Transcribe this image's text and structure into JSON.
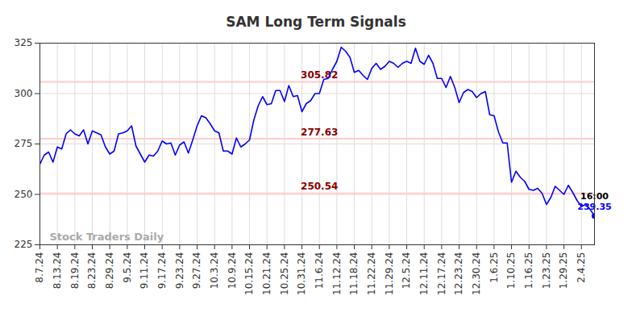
{
  "chart_data": {
    "type": "line",
    "title": "SAM Long Term Signals",
    "categories": [
      "8.7.24",
      null,
      null,
      null,
      "8.13.24",
      null,
      null,
      null,
      "8.19.24",
      null,
      null,
      null,
      "8.23.24",
      null,
      null,
      null,
      "8.29.24",
      null,
      null,
      null,
      "9.5.24",
      null,
      null,
      null,
      "9.11.24",
      null,
      null,
      null,
      "9.17.24",
      null,
      null,
      null,
      "9.23.24",
      null,
      null,
      null,
      "9.27.24",
      null,
      null,
      null,
      "10.3.24",
      null,
      null,
      null,
      "10.9.24",
      null,
      null,
      null,
      "10.15.24",
      null,
      null,
      null,
      "10.21.24",
      null,
      null,
      null,
      "10.25.24",
      null,
      null,
      null,
      "10.31.24",
      null,
      null,
      null,
      "11.6.24",
      null,
      null,
      null,
      "11.12.24",
      null,
      null,
      null,
      "11.18.24",
      null,
      null,
      null,
      "11.22.24",
      null,
      null,
      null,
      "11.29.24",
      null,
      null,
      null,
      "12.5.24",
      null,
      null,
      null,
      "12.11.24",
      null,
      null,
      null,
      "12.17.24",
      null,
      null,
      null,
      "12.23.24",
      null,
      null,
      null,
      "12.30.24",
      null,
      null,
      null,
      "1.6.25",
      null,
      null,
      null,
      "1.10.25",
      null,
      null,
      null,
      "1.16.25",
      null,
      null,
      null,
      "1.23.25",
      null,
      null,
      null,
      "1.29.25",
      null,
      null,
      null,
      "2.4.25",
      null,
      null,
      null
    ],
    "values": [
      265,
      269.5,
      271,
      266,
      273.5,
      272.5,
      280,
      282,
      280,
      279,
      282,
      275,
      281.5,
      280.5,
      279.5,
      273.5,
      270,
      271.5,
      280,
      280.5,
      281.5,
      284,
      274,
      270,
      266,
      269.5,
      269,
      271.5,
      276.5,
      275,
      275.5,
      269.5,
      274.5,
      276,
      270.5,
      277,
      284,
      289,
      288,
      285,
      281.5,
      280.5,
      271.5,
      271.5,
      270,
      278,
      273.5,
      275,
      277,
      287,
      294,
      298.5,
      294.5,
      295,
      301.5,
      301.5,
      296,
      304,
      298.5,
      299,
      291,
      295,
      296.5,
      300,
      300,
      307,
      307.5,
      312,
      316,
      323,
      321,
      318,
      310.5,
      311.5,
      309,
      307,
      312.5,
      315,
      312,
      313.5,
      316,
      315,
      313,
      315,
      316,
      315,
      322.5,
      316,
      314.5,
      319,
      315,
      307.5,
      307.5,
      303,
      308.5,
      303,
      295.5,
      300.5,
      302,
      301,
      298,
      300,
      301,
      289.5,
      289,
      281,
      275.5,
      275.5,
      256,
      261.5,
      258.5,
      256.5,
      252.5,
      252,
      253,
      250.5,
      245,
      248.5,
      254,
      252,
      250,
      254.5,
      251,
      247,
      244,
      245,
      242.5,
      239.35
    ],
    "color": "#0000ff",
    "ylim": [
      225,
      325
    ],
    "yticks": [
      225,
      250,
      275,
      300,
      325
    ],
    "grid": true,
    "hlines": [
      305.82,
      277.63,
      250.54
    ],
    "last_point": {
      "label": "16:00",
      "value": 239.35
    },
    "watermark": "Stock Traders Daily"
  }
}
